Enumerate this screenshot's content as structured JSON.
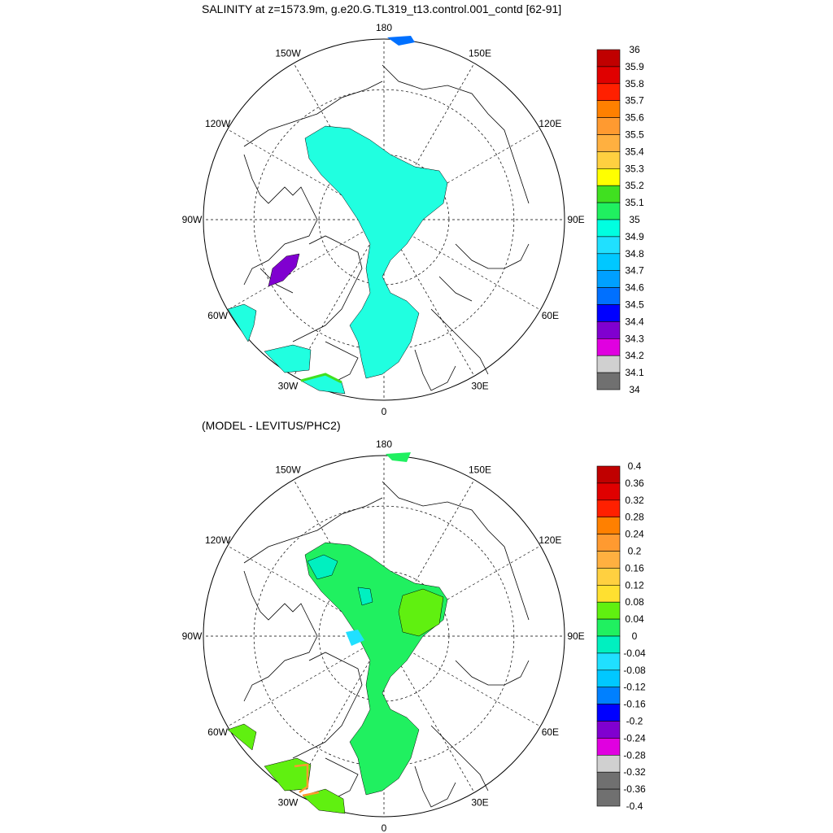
{
  "panel1": {
    "title": "SALINITY at z=1573.9m, g.e20.G.TL319_t13.control.001_contd [62-91]",
    "lon_labels": [
      "180",
      "150E",
      "120E",
      "90E",
      "60E",
      "30E",
      "0",
      "30W",
      "60W",
      "90W",
      "120W",
      "150W"
    ],
    "colorbar": {
      "levels": [
        "36",
        "35.9",
        "35.8",
        "35.7",
        "35.6",
        "35.5",
        "35.4",
        "35.3",
        "35.2",
        "35.1",
        "35",
        "34.9",
        "34.8",
        "34.7",
        "34.6",
        "34.5",
        "34.4",
        "34.3",
        "34.2",
        "34.1",
        "34"
      ],
      "colors": [
        "#c00000",
        "#e00000",
        "#ff2000",
        "#ff8000",
        "#ff9a30",
        "#ffb040",
        "#ffd040",
        "#ffff00",
        "#40e020",
        "#20f060",
        "#00ffe0",
        "#20e0ff",
        "#00c8ff",
        "#00a0ff",
        "#0070ff",
        "#0000ff",
        "#8000d0",
        "#e000e0",
        "#d0d0d0",
        "#707070"
      ]
    }
  },
  "panel2": {
    "title": "(MODEL - LEVITUS/PHC2)",
    "lon_labels": [
      "180",
      "150E",
      "120E",
      "90E",
      "60E",
      "30E",
      "0",
      "30W",
      "60W",
      "90W",
      "120W",
      "150W"
    ],
    "colorbar": {
      "levels": [
        "0.4",
        "0.36",
        "0.32",
        "0.28",
        "0.24",
        "0.2",
        "0.16",
        "0.12",
        "0.08",
        "0.04",
        "0",
        "-0.04",
        "-0.08",
        "-0.12",
        "-0.16",
        "-0.2",
        "-0.24",
        "-0.28",
        "-0.32",
        "-0.36",
        "-0.4"
      ],
      "colors": [
        "#c00000",
        "#e00000",
        "#ff2000",
        "#ff8000",
        "#ff9a30",
        "#ffb040",
        "#ffd040",
        "#ffe030",
        "#60f010",
        "#20f060",
        "#00f0c0",
        "#20e0ff",
        "#00c8ff",
        "#0080ff",
        "#0000ff",
        "#8000d0",
        "#e000e0",
        "#d0d0d0",
        "#707070",
        "#707070"
      ]
    }
  },
  "colors": {
    "ocean_fill": "#20ffe0",
    "diff_fill": "#20f060",
    "diff_warm": "#60f010",
    "coast": "#000000",
    "grid": "#000000"
  }
}
